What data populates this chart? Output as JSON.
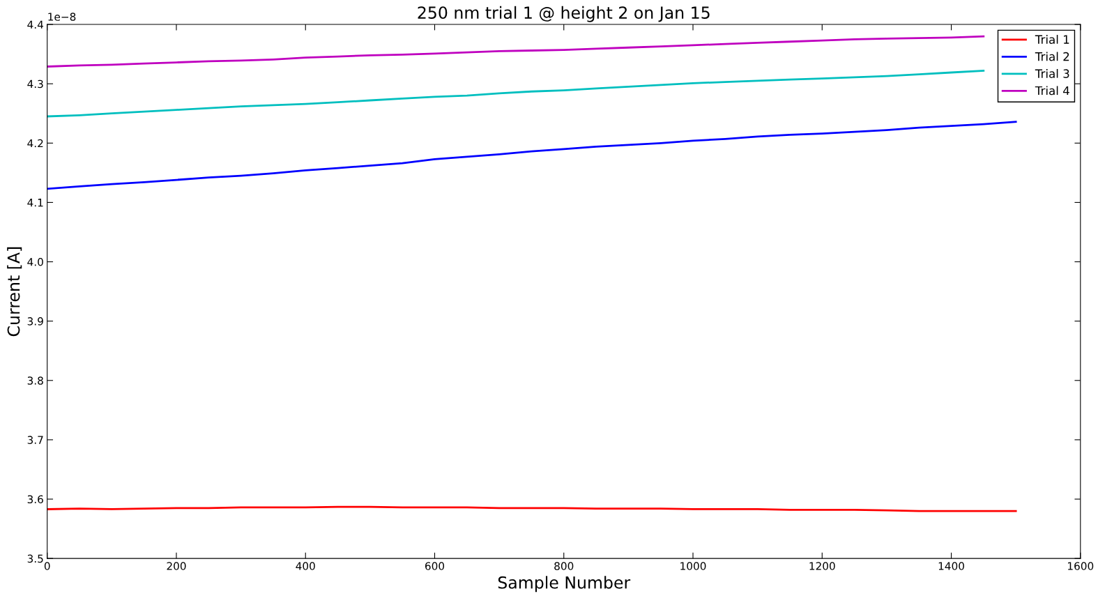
{
  "chart_data": {
    "type": "line",
    "title": "250 nm trial 1 @ height 2 on Jan 15",
    "xlabel": "Sample Number",
    "ylabel": "Current [A]",
    "annotations": [
      "1e−8"
    ],
    "x": [
      0,
      50,
      100,
      150,
      200,
      250,
      300,
      350,
      400,
      450,
      500,
      550,
      600,
      650,
      700,
      750,
      800,
      850,
      900,
      950,
      1000,
      1050,
      1100,
      1150,
      1200,
      1250,
      1300,
      1350,
      1400,
      1450,
      1500
    ],
    "series": [
      {
        "name": "Trial 1",
        "color": "#ff0000",
        "values": [
          3.583,
          3.584,
          3.583,
          3.584,
          3.585,
          3.585,
          3.586,
          3.586,
          3.586,
          3.587,
          3.587,
          3.586,
          3.586,
          3.586,
          3.585,
          3.585,
          3.585,
          3.584,
          3.584,
          3.584,
          3.583,
          3.583,
          3.583,
          3.582,
          3.582,
          3.582,
          3.581,
          3.58,
          3.58,
          3.58,
          3.58
        ]
      },
      {
        "name": "Trial 2",
        "color": "#0000ff",
        "values": [
          4.123,
          4.127,
          4.131,
          4.134,
          4.138,
          4.142,
          4.145,
          4.149,
          4.154,
          4.158,
          4.162,
          4.166,
          4.173,
          4.177,
          4.181,
          4.186,
          4.19,
          4.194,
          4.197,
          4.2,
          4.204,
          4.207,
          4.211,
          4.214,
          4.216,
          4.219,
          4.222,
          4.226,
          4.229,
          4.232,
          4.236
        ]
      },
      {
        "name": "Trial 3",
        "color": "#00bfbf",
        "values": [
          4.245,
          4.247,
          4.25,
          4.253,
          4.256,
          4.259,
          4.262,
          4.264,
          4.266,
          4.269,
          4.272,
          4.275,
          4.278,
          4.28,
          4.284,
          4.287,
          4.289,
          4.292,
          4.295,
          4.298,
          4.301,
          4.303,
          4.305,
          4.307,
          4.309,
          4.311,
          4.313,
          4.316,
          4.319,
          4.322,
          null
        ]
      },
      {
        "name": "Trial 4",
        "color": "#bf00bf",
        "values": [
          4.329,
          4.331,
          4.332,
          4.334,
          4.336,
          4.338,
          4.339,
          4.341,
          4.344,
          4.346,
          4.348,
          4.349,
          4.351,
          4.353,
          4.355,
          4.356,
          4.357,
          4.359,
          4.361,
          4.363,
          4.365,
          4.367,
          4.369,
          4.371,
          4.373,
          4.375,
          4.376,
          4.377,
          4.378,
          4.38,
          null
        ]
      }
    ],
    "xlim": [
      0,
      1600
    ],
    "xticks": [
      0,
      200,
      400,
      600,
      800,
      1000,
      1200,
      1400,
      1600
    ],
    "ylim": [
      3.5,
      4.4
    ],
    "yticks": [
      3.5,
      3.6,
      3.7,
      3.8,
      3.9,
      {
        "value": 4,
        "label": "4.0"
      },
      4.1,
      4.2,
      4.3,
      4.4
    ],
    "grid": false,
    "legend": "top right",
    "marker": "none",
    "line_style": "solid"
  }
}
